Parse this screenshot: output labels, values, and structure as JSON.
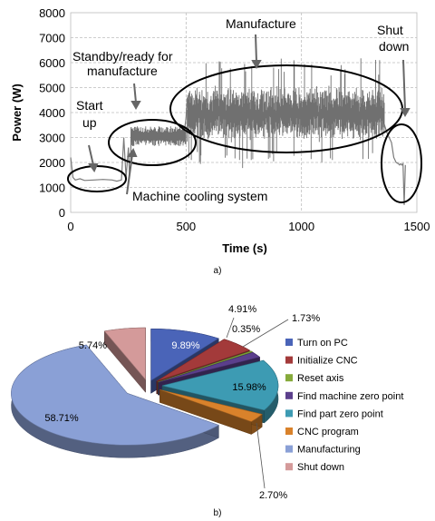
{
  "chart_data": [
    {
      "type": "line",
      "xlabel": "Time (s)",
      "ylabel": "Power (W)",
      "xlim": [
        0,
        1500
      ],
      "ylim": [
        0,
        8000
      ],
      "xticks": [
        0,
        500,
        1000,
        1500
      ],
      "yticks": [
        0,
        1000,
        2000,
        3000,
        4000,
        5000,
        6000,
        7000,
        8000
      ],
      "grid": "dashed",
      "series": [
        {
          "x": [
            0,
            10,
            20,
            40,
            60,
            100,
            140,
            180,
            200,
            220,
            230,
            240,
            250,
            255,
            260,
            262,
            265,
            270,
            280,
            290,
            300,
            320,
            350,
            380,
            420,
            460,
            490,
            500,
            505,
            510,
            520,
            560,
            600,
            650,
            700,
            750,
            800,
            850,
            900,
            950,
            1000,
            1050,
            1100,
            1150,
            1200,
            1250,
            1300,
            1340,
            1360,
            1370,
            1380,
            1390,
            1400,
            1410,
            1420,
            1425,
            1430,
            1435,
            1440,
            1445,
            1450
          ],
          "y": [
            2200,
            1400,
            1300,
            1350,
            1280,
            1300,
            1320,
            1300,
            1250,
            1300,
            3000,
            1400,
            2600,
            1500,
            1900,
            3400,
            2700,
            3200,
            3100,
            3200,
            3100,
            3050,
            3100,
            3150,
            3100,
            3100,
            3050,
            3800,
            4600,
            3900,
            4200,
            4000,
            4100,
            3900,
            4200,
            4000,
            4100,
            3900,
            4100,
            4000,
            4200,
            3900,
            4100,
            4000,
            4200,
            3900,
            4100,
            4000,
            3500,
            3200,
            3000,
            2800,
            2200,
            2000,
            1950,
            1900,
            1950,
            1900,
            1950,
            300,
            1900
          ]
        }
      ],
      "annotations": [
        {
          "text": "Start up",
          "lines": [
            "Start",
            "up"
          ]
        },
        {
          "text": "Standby/ready for manufacture",
          "lines": [
            "Standby/ready for",
            "manufacture"
          ]
        },
        {
          "text": "Manufacture",
          "lines": [
            "Manufacture"
          ]
        },
        {
          "text": "Shut down",
          "lines": [
            "Shut",
            "down"
          ]
        },
        {
          "text": "Machine cooling system",
          "lines": [
            "Machine cooling system"
          ]
        }
      ],
      "caption": "a)"
    },
    {
      "type": "pie",
      "style": "3d-exploded",
      "legend": "right",
      "categories": [
        "Turn on PC",
        "Initialize CNC",
        "Reset axis",
        "Find machine zero point",
        "Find part zero point",
        "CNC program",
        "Manufacturing",
        "Shut down"
      ],
      "values": [
        9.89,
        4.91,
        0.35,
        1.73,
        15.98,
        2.7,
        58.71,
        5.74
      ],
      "value_labels": [
        "9.89%",
        "4.91%",
        "0.35%",
        "1.73%",
        "15.98%",
        "2.70%",
        "58.71%",
        "5.74%"
      ],
      "colors": [
        "#4a64b8",
        "#a33a3a",
        "#86aa3a",
        "#5b3f8c",
        "#3d9bb3",
        "#d9822b",
        "#8aa0d6",
        "#d49a9a"
      ],
      "caption": "b)"
    }
  ]
}
